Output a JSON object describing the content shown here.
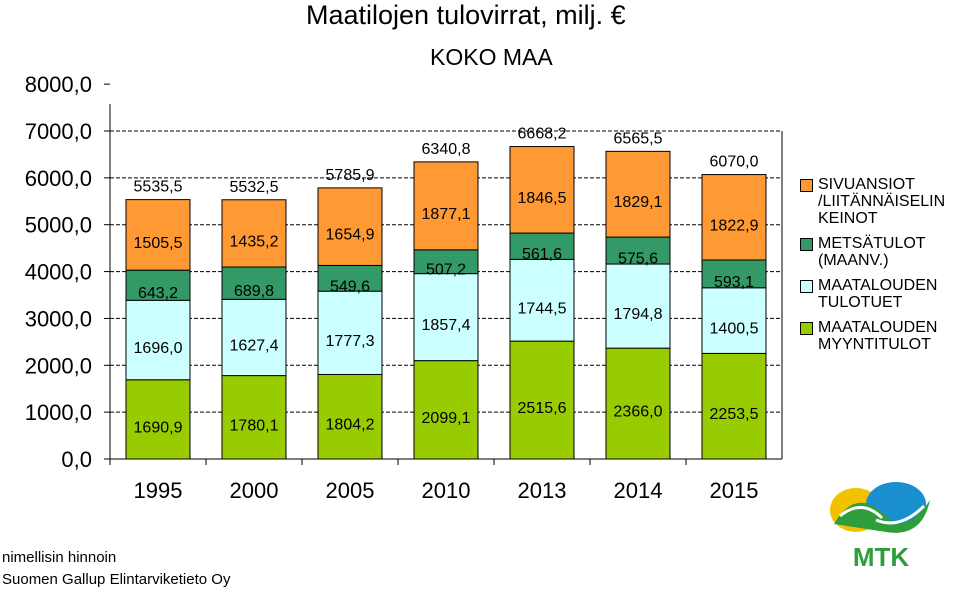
{
  "title": "Maatilojen tulovirrat,  milj. €",
  "subtitle": "KOKO MAA",
  "chart_data": {
    "type": "stacked-bar",
    "title": "Maatilojen tulovirrat,  milj. €",
    "subtitle": "KOKO MAA",
    "categories": [
      "1995",
      "2000",
      "2005",
      "2010",
      "2013",
      "2014",
      "2015"
    ],
    "series": [
      {
        "name": "MAATALOUDEN MYYNTITULOT",
        "color": "#99cc00",
        "values": [
          1690.9,
          1780.1,
          1804.2,
          2099.1,
          2515.6,
          2366.0,
          2253.5
        ],
        "labels": [
          "1690,9",
          "1780,1",
          "1804,2",
          "2099,1",
          "2515,6",
          "2366,0",
          "2253,5"
        ]
      },
      {
        "name": "MAATALOUDEN TULOTUET",
        "color": "#ccffff",
        "values": [
          1696.0,
          1627.4,
          1777.3,
          1857.4,
          1744.5,
          1794.8,
          1400.5
        ],
        "labels": [
          "1696,0",
          "1627,4",
          "1777,3",
          "1857,4",
          "1744,5",
          "1794,8",
          "1400,5"
        ]
      },
      {
        "name": "METSÄTULOT (MAANV.)",
        "color": "#339966",
        "values": [
          643.2,
          689.8,
          549.6,
          507.2,
          561.6,
          575.6,
          593.1
        ],
        "labels": [
          "643,2",
          "689,8",
          "549,6",
          "507,2",
          "561,6",
          "575,6",
          "593,1"
        ]
      },
      {
        "name": "SIVUANSIOT /LIITÄNNÄISELINKEINOT",
        "color": "#ff9933",
        "values": [
          1505.5,
          1435.2,
          1654.9,
          1877.1,
          1846.5,
          1829.1,
          1822.9
        ],
        "labels": [
          "1505,5",
          "1435,2",
          "1654,9",
          "1877,1",
          "1846,5",
          "1829,1",
          "1822,9"
        ]
      }
    ],
    "totals": [
      5535.5,
      5532.5,
      5785.9,
      6340.8,
      6668.2,
      6565.5,
      6070.0
    ],
    "total_labels": [
      "5535,5",
      "5532,5",
      "5785,9",
      "6340,8",
      "6668,2",
      "6565,5",
      "6070,0"
    ],
    "ylim": [
      0,
      8000
    ],
    "yticks": [
      0,
      1000,
      2000,
      3000,
      4000,
      5000,
      6000,
      7000,
      8000
    ],
    "ytick_labels": [
      "0,0",
      "1000,0",
      "2000,0",
      "3000,0",
      "4000,0",
      "5000,0",
      "6000,0",
      "7000,0",
      "8000,0"
    ],
    "grid": "dashed-horizontal",
    "legend": "right",
    "xlabel": "",
    "ylabel": ""
  },
  "legend": [
    {
      "label": "SIVUANSIOT\n/LIITÄNNÄISELIN\nKEINOT",
      "color": "#ff9933"
    },
    {
      "label": "METSÄTULOT\n(MAANV.)",
      "color": "#339966"
    },
    {
      "label": "MAATALOUDEN\nTULOTUET",
      "color": "#ccffff"
    },
    {
      "label": "MAATALOUDEN\nMYYNTITULOT",
      "color": "#99cc00"
    }
  ],
  "notes": {
    "line1": "nimellisin hinnoin",
    "line2": "Suomen Gallup Elintarviketieto Oy"
  },
  "logo": {
    "text": "MTK",
    "color": "#2e9e3a"
  }
}
